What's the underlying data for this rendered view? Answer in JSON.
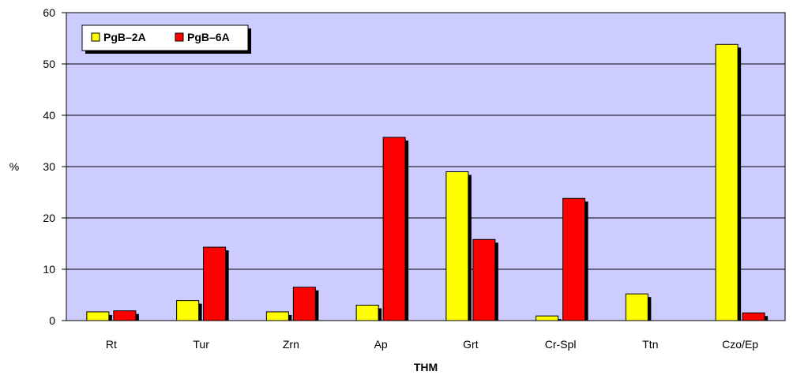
{
  "chart_data": {
    "type": "bar",
    "categories": [
      "Rt",
      "Tur",
      "Zrn",
      "Ap",
      "Grt",
      "Cr-Spl",
      "Ttn",
      "Czo/Ep"
    ],
    "series": [
      {
        "name": "PgB–2A",
        "color": "#ffff00",
        "values": [
          1.7,
          3.9,
          1.7,
          3.0,
          29.0,
          0.9,
          5.2,
          53.8
        ]
      },
      {
        "name": "PgB–6A",
        "color": "#ff0000",
        "values": [
          1.9,
          14.3,
          6.5,
          35.7,
          15.8,
          23.8,
          0,
          1.5
        ]
      }
    ],
    "xlabel": "THM",
    "ylabel": "%",
    "ylim": [
      0,
      60
    ],
    "yticks": [
      0,
      10,
      20,
      30,
      40,
      50,
      60
    ],
    "grid": true,
    "legend_position": "top-left",
    "plot_background": "#ccccff"
  }
}
